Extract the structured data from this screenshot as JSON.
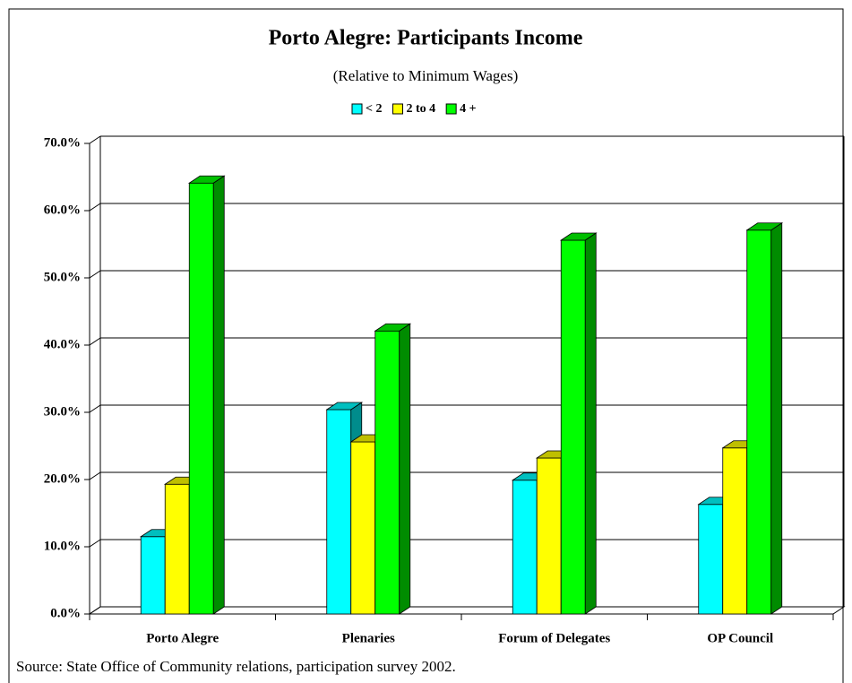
{
  "chart_data": {
    "type": "bar3d",
    "title": "Porto Alegre: Participants Income",
    "subtitle": "(Relative to Minimum Wages)",
    "source": "Source: State Office of Community relations, participation survey 2002.",
    "categories": [
      "Porto Alegre",
      "Plenaries",
      "Forum of Delegates",
      "OP Council"
    ],
    "series": [
      {
        "name": "< 2",
        "color": "#00ffff",
        "values": [
          11.5,
          30.4,
          19.9,
          16.3
        ]
      },
      {
        "name": "2 to 4",
        "color": "#ffff00",
        "values": [
          19.3,
          25.6,
          23.2,
          24.7
        ]
      },
      {
        "name": "4 +",
        "color": "#00ff00",
        "values": [
          64.1,
          42.1,
          55.6,
          57.1
        ]
      }
    ],
    "ylim": [
      0,
      70
    ],
    "yticks": [
      {
        "value": 0,
        "label": "0.0%"
      },
      {
        "value": 10,
        "label": "10.0%"
      },
      {
        "value": 20,
        "label": "20.0%"
      },
      {
        "value": 30,
        "label": "30.0%"
      },
      {
        "value": 40,
        "label": "40.0%"
      },
      {
        "value": 50,
        "label": "50.0%"
      },
      {
        "value": 60,
        "label": "60.0%"
      },
      {
        "value": 70,
        "label": "70.0%"
      }
    ],
    "grid": true,
    "legend": "top"
  }
}
